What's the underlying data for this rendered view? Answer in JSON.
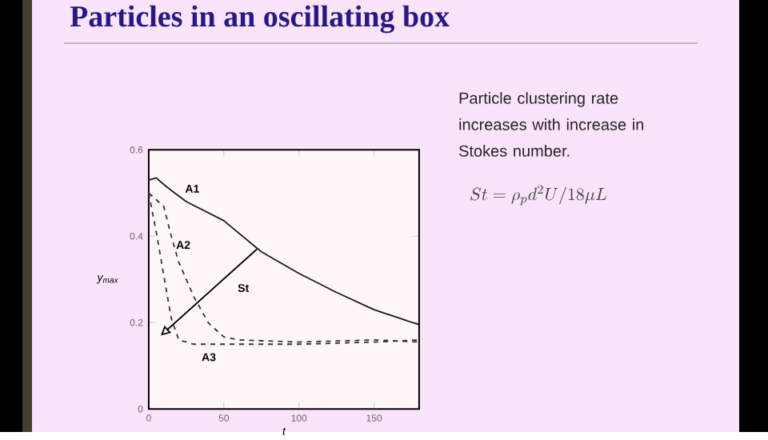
{
  "chart_data": {
    "type": "line",
    "title": "Particles in an oscillating box",
    "xlabel": "t",
    "ylabel": "y$_{max}$",
    "xlim": [
      0,
      180
    ],
    "ylim": [
      0,
      0.6
    ],
    "xticks": [
      0,
      50,
      100,
      150
    ],
    "yticks": [
      0,
      0.2,
      0.4,
      0.6
    ],
    "series": [
      {
        "name": "A1",
        "color": "#1a1a1a",
        "line_style": "solid",
        "x": [
          0,
          5,
          10,
          15,
          25,
          50,
          75,
          100,
          125,
          150,
          180
        ],
        "values": [
          0.53,
          0.535,
          0.52,
          0.506,
          0.48,
          0.436,
          0.364,
          0.314,
          0.27,
          0.23,
          0.195
        ]
      },
      {
        "name": "A2",
        "color": "#333333",
        "line_style": "dashed",
        "x": [
          0,
          10,
          15,
          20,
          30,
          40,
          50,
          60,
          100,
          150,
          180
        ],
        "values": [
          0.5,
          0.469,
          0.4,
          0.34,
          0.26,
          0.198,
          0.167,
          0.16,
          0.155,
          0.16,
          0.155
        ]
      },
      {
        "name": "A3",
        "color": "#333333",
        "line_style": "dashed",
        "x": [
          0,
          5,
          10,
          15,
          20,
          30,
          60,
          100,
          150,
          180
        ],
        "values": [
          0.5,
          0.41,
          0.31,
          0.21,
          0.16,
          0.15,
          0.15,
          0.15,
          0.155,
          0.16
        ]
      }
    ],
    "annotations": [
      "St",
      "Particle clustering rate increases with increase in Stokes number.",
      "St = \\rho_p d^2 U / 18 \\mu L"
    ]
  }
}
